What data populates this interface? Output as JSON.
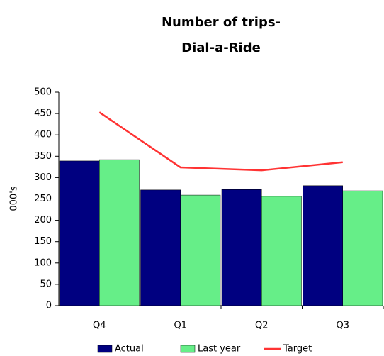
{
  "chart_data": {
    "type": "bar",
    "title": [
      "Number of trips-",
      "Dial-a-Ride"
    ],
    "y_label": "000's",
    "categories": [
      "Q4",
      "Q1",
      "Q2",
      "Q3"
    ],
    "series": [
      {
        "name": "Actual",
        "color": "#000080",
        "type": "bar",
        "values": [
          339,
          271,
          272,
          281
        ]
      },
      {
        "name": "Last year",
        "color": "#66ee88",
        "type": "bar",
        "values": [
          342,
          259,
          256,
          269
        ]
      },
      {
        "name": "Target",
        "color": "#ff3333",
        "type": "line",
        "values": [
          453,
          324,
          317,
          336
        ]
      }
    ],
    "ylim": [
      0,
      500
    ],
    "yticks": [
      0,
      50,
      100,
      150,
      200,
      250,
      300,
      350,
      400,
      450,
      500
    ],
    "legend": "bottom"
  }
}
